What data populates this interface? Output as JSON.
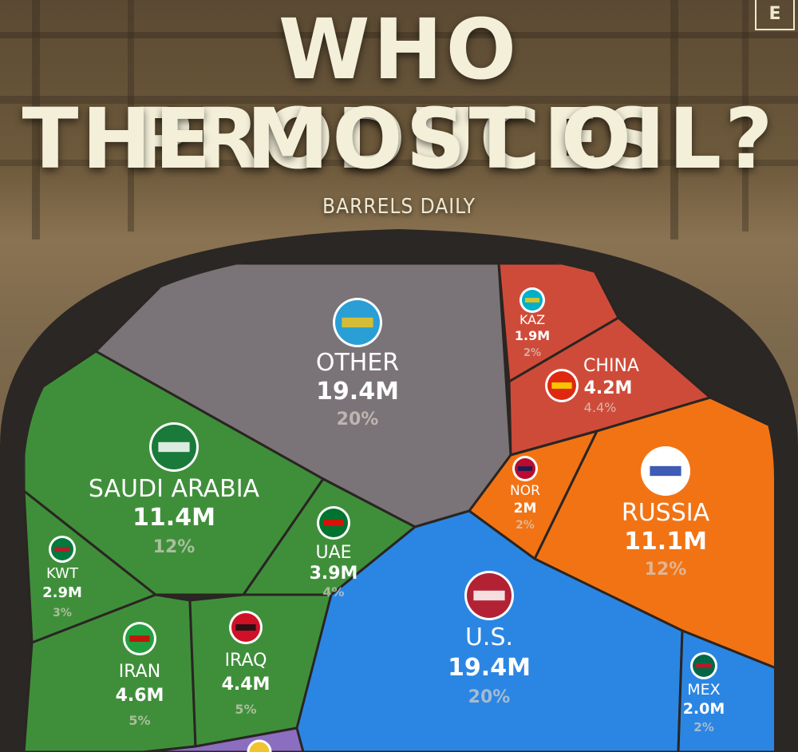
{
  "header": {
    "title_line1": "WHO PRODUCES",
    "title_line2": "THE MOST OIL?",
    "subtitle": "BARRELS DAILY",
    "logo": "E"
  },
  "colors": {
    "other": "#7a7478",
    "green": "#3f8f3a",
    "red": "#cf4b39",
    "orange": "#f27314",
    "blue": "#2b86e3",
    "purple": "#8c6ec0",
    "barrel": "#2b2725",
    "text_light": "#ffffff",
    "text_faded": "#d9d2c8"
  },
  "chart_data": {
    "type": "voronoi-treemap",
    "title": "WHO PRODUCES THE MOST OIL?",
    "subtitle": "BARRELS DAILY",
    "series": [
      {
        "name": "OTHER",
        "value_label": "19.4M",
        "value": 19.4,
        "share": "20%",
        "group": "other",
        "icon": "globe-icon"
      },
      {
        "name": "U.S.",
        "value_label": "19.4M",
        "value": 19.4,
        "share": "20%",
        "group": "blue",
        "icon": "us-flag-icon"
      },
      {
        "name": "SAUDI ARABIA",
        "value_label": "11.4M",
        "value": 11.4,
        "share": "12%",
        "group": "green",
        "icon": "saudi-flag-icon"
      },
      {
        "name": "RUSSIA",
        "value_label": "11.1M",
        "value": 11.1,
        "share": "12%",
        "group": "orange",
        "icon": "russia-flag-icon"
      },
      {
        "name": "IRAN",
        "value_label": "4.6M",
        "value": 4.6,
        "share": "5%",
        "group": "green",
        "icon": "iran-flag-icon"
      },
      {
        "name": "IRAQ",
        "value_label": "4.4M",
        "value": 4.4,
        "share": "5%",
        "group": "green",
        "icon": "iraq-flag-icon"
      },
      {
        "name": "CHINA",
        "value_label": "4.2M",
        "value": 4.2,
        "share": "4.4%",
        "group": "red",
        "icon": "china-flag-icon"
      },
      {
        "name": "UAE",
        "value_label": "3.9M",
        "value": 3.9,
        "share": "4%",
        "group": "green",
        "icon": "uae-flag-icon"
      },
      {
        "name": "KWT",
        "value_label": "2.9M",
        "value": 2.9,
        "share": "3%",
        "group": "green",
        "icon": "kuwait-flag-icon"
      },
      {
        "name": "MEX",
        "value_label": "2.0M",
        "value": 2.0,
        "share": "2%",
        "group": "blue",
        "icon": "mexico-flag-icon"
      },
      {
        "name": "NOR",
        "value_label": "2M",
        "value": 2.0,
        "share": "2%",
        "group": "orange",
        "icon": "norway-flag-icon"
      },
      {
        "name": "KAZ",
        "value_label": "1.9M",
        "value": 1.9,
        "share": "2%",
        "group": "red",
        "icon": "kazakhstan-flag-icon"
      }
    ]
  }
}
